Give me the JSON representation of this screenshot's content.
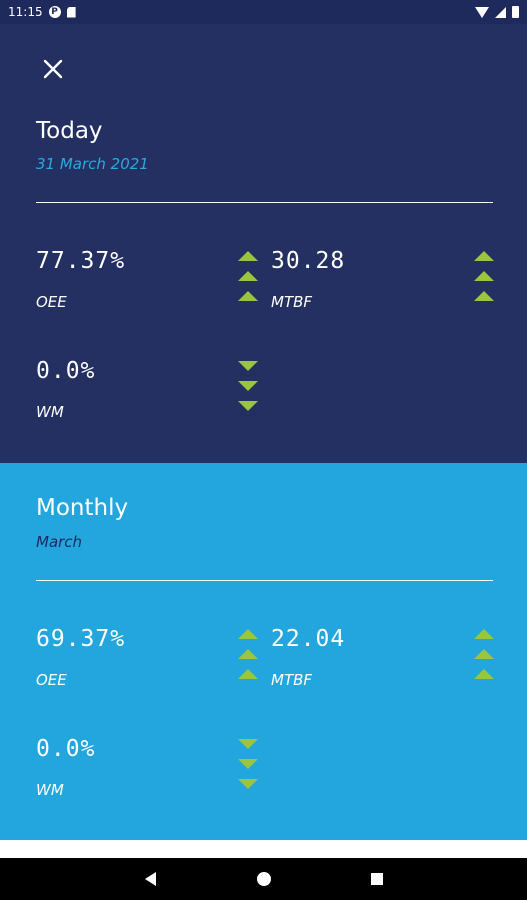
{
  "status_bar": {
    "time": "11:15",
    "icons": [
      "p-circle-icon",
      "sd-card-icon",
      "wifi-icon",
      "signal-icon",
      "battery-icon"
    ]
  },
  "close": {
    "icon": "close-icon"
  },
  "today": {
    "title": "Today",
    "subtitle": "31 March 2021",
    "metrics": {
      "oee": {
        "value": "77.37%",
        "label": "OEE",
        "trend": "up"
      },
      "mtbf": {
        "value": "30.28",
        "label": "MTBF",
        "trend": "up"
      },
      "wm": {
        "value": "0.0%",
        "label": "WM",
        "trend": "down"
      }
    }
  },
  "monthly": {
    "title": "Monthly",
    "subtitle": "March",
    "metrics": {
      "oee": {
        "value": "69.37%",
        "label": "OEE",
        "trend": "up"
      },
      "mtbf": {
        "value": "22.04",
        "label": "MTBF",
        "trend": "up"
      },
      "wm": {
        "value": "0.0%",
        "label": "WM",
        "trend": "down"
      }
    }
  },
  "colors": {
    "today_bg": "#233061",
    "monthly_bg": "#23a6dd",
    "arrow": "#9bc53d",
    "today_subtitle": "#2aa8e0",
    "monthly_subtitle": "#1e2a5c"
  },
  "nav_bar": {
    "icons": [
      "back-icon",
      "home-icon",
      "recents-icon"
    ]
  }
}
